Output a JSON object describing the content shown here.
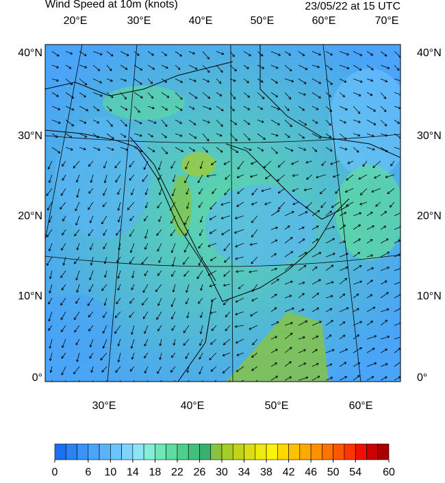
{
  "header": {
    "title": "Wind Speed at 10m (knots)",
    "time": "23/05/22 at 15 UTC"
  },
  "map": {
    "top_lon_labels": [
      "20°E",
      "30°E",
      "40°E",
      "50°E",
      "60°E",
      "70°E"
    ],
    "bottom_lon_labels": [
      "30°E",
      "40°E",
      "50°E",
      "60°E"
    ],
    "left_lat_labels": [
      "40°N",
      "30°N",
      "20°N",
      "10°N",
      "0°"
    ],
    "right_lat_labels": [
      "40°N",
      "30°N",
      "20°N",
      "10°N",
      "0°"
    ]
  },
  "colorbar": {
    "range": [
      0,
      60
    ],
    "ticks": [
      0,
      6,
      10,
      14,
      18,
      22,
      26,
      30,
      34,
      38,
      42,
      46,
      50,
      54,
      60
    ],
    "colors": [
      "#1c6ff0",
      "#2a82f3",
      "#3a93f5",
      "#4aa4f7",
      "#5ab4f9",
      "#6cc4fb",
      "#80d4fc",
      "#8ee4f4",
      "#84eed6",
      "#70e6b8",
      "#5edb9e",
      "#4ecf8c",
      "#42c17e",
      "#38b072",
      "#88c440",
      "#a6cc28",
      "#c2d41a",
      "#dade12",
      "#eeea0e",
      "#fff20a",
      "#ffd800",
      "#ffc000",
      "#ffa800",
      "#ff9000",
      "#ff7400",
      "#ff5600",
      "#ff3600",
      "#f01000",
      "#cc0000",
      "#a80000"
    ]
  }
}
